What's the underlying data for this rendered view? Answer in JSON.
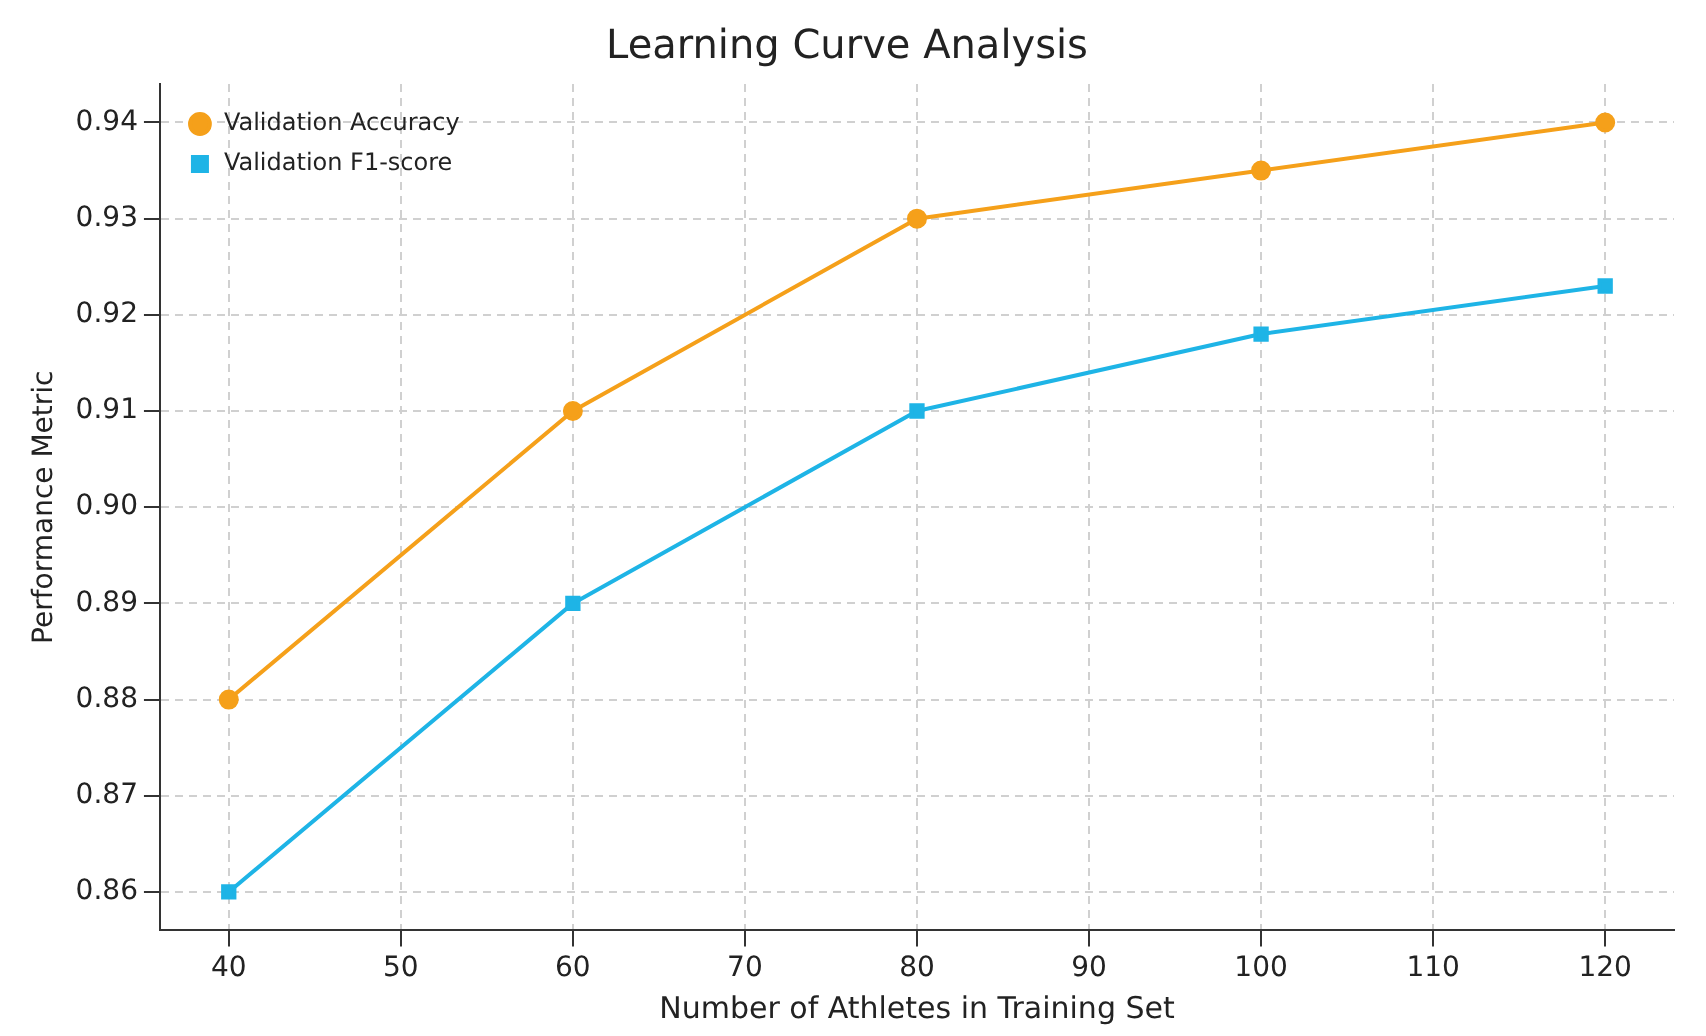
{
  "chart_data": {
    "type": "line",
    "title": "Learning Curve Analysis",
    "xlabel": "Number of Athletes in Training Set",
    "ylabel": "Performance Metric",
    "x": [
      40,
      60,
      80,
      100,
      120
    ],
    "series": [
      {
        "name": "Validation Accuracy",
        "color": "#f5a01a",
        "marker": "circle",
        "values": [
          0.88,
          0.91,
          0.93,
          0.935,
          0.94
        ]
      },
      {
        "name": "Validation F1-score",
        "color": "#1eb4e6",
        "marker": "square",
        "values": [
          0.86,
          0.89,
          0.91,
          0.918,
          0.923
        ]
      }
    ],
    "xlim": [
      36,
      124
    ],
    "xticks": [
      40,
      50,
      60,
      70,
      80,
      90,
      100,
      110,
      120
    ],
    "ylim": [
      0.856,
      0.944
    ],
    "yticks": [
      0.86,
      0.87,
      0.88,
      0.89,
      {
        "value": 0.9,
        "label": "0.90"
      },
      0.91,
      0.92,
      0.93,
      0.94
    ],
    "grid": true,
    "legend": "top left",
    "line_style": "solid"
  }
}
